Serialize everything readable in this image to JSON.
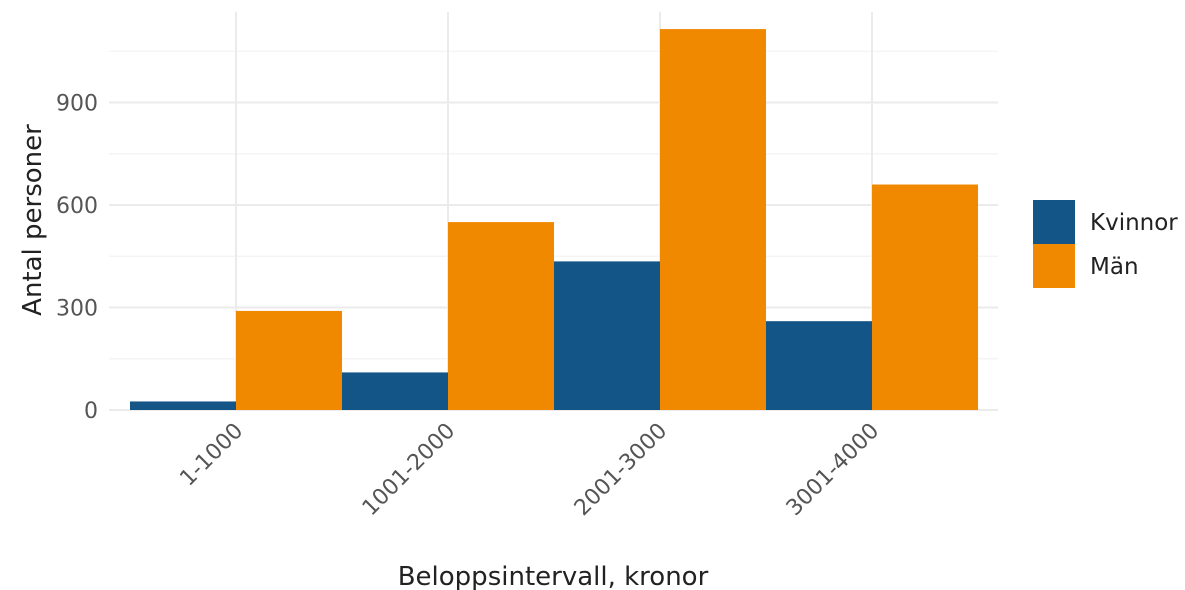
{
  "chart_data": {
    "type": "bar",
    "categories": [
      "1-1000",
      "1001-2000",
      "2001-3000",
      "3001-4000"
    ],
    "series": [
      {
        "name": "Kvinnor",
        "color": "#135587",
        "values": [
          25,
          110,
          435,
          260
        ]
      },
      {
        "name": "Män",
        "color": "#f08900",
        "values": [
          290,
          550,
          1115,
          660
        ]
      }
    ],
    "xlabel": "Beloppsintervall, kronor",
    "ylabel": "Antal personer",
    "ylim": [
      0,
      1165
    ],
    "yticks": [
      0,
      300,
      600,
      900
    ],
    "grid": true,
    "legend": "right"
  }
}
